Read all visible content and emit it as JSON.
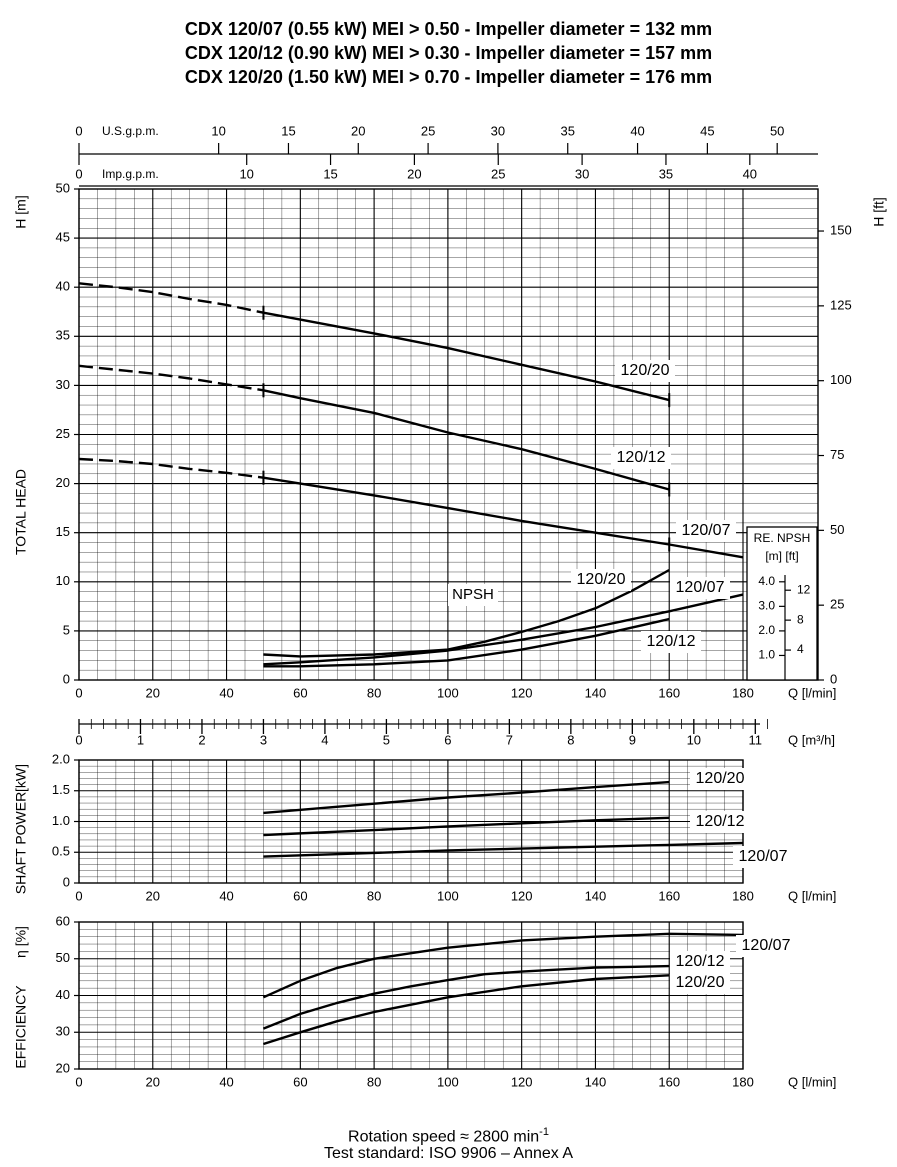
{
  "titles": [
    "CDX 120/07 (0.55 kW) MEI > 0.50 - Impeller diameter = 132 mm",
    "CDX 120/12 (0.90 kW) MEI > 0.30 - Impeller diameter = 157 mm",
    "CDX 120/20 (1.50 kW) MEI > 0.70 - Impeller diameter = 176 mm"
  ],
  "footer": {
    "rotation_speed": "Rotation speed ≈ 2800 min",
    "rotation_unit_sup": "-1",
    "test_standard": "Test standard: ISO 9906 – Annex A"
  },
  "top_axes": {
    "usgpm_label": "U.S.g.p.m.",
    "usgpm_ticks": [
      0,
      10,
      15,
      20,
      25,
      30,
      35,
      40,
      45,
      50
    ],
    "impgpm_label": "Imp.g.p.m.",
    "impgpm_ticks": [
      0,
      10,
      15,
      20,
      25,
      30,
      35,
      40
    ]
  },
  "chart_data": [
    {
      "id": "head",
      "type": "line",
      "ylabel": "TOTAL HEAD",
      "ylabel_unit": "H [m]",
      "y2label": "H [ft]",
      "xlabel": "Q [l/min]",
      "xlim": [
        0,
        180
      ],
      "ylim": [
        0,
        50
      ],
      "grid": true,
      "x_ticks": [
        0,
        20,
        40,
        60,
        80,
        100,
        120,
        140,
        160,
        180
      ],
      "y_ticks": [
        0,
        5,
        10,
        15,
        20,
        25,
        30,
        35,
        40,
        45,
        50
      ],
      "y2_ticks": [
        0,
        25,
        50,
        75,
        100,
        125,
        150
      ],
      "series": [
        {
          "name": "120/20",
          "kind": "head",
          "dashed_x": [
            0,
            10,
            20,
            30,
            40,
            50
          ],
          "dashed_y": [
            40.4,
            40.0,
            39.5,
            38.8,
            38.2,
            37.4
          ],
          "x": [
            50,
            60,
            80,
            100,
            120,
            140,
            160
          ],
          "y": [
            37.4,
            36.7,
            35.3,
            33.8,
            32.1,
            30.4,
            28.5
          ]
        },
        {
          "name": "120/12",
          "kind": "head",
          "dashed_x": [
            0,
            10,
            20,
            30,
            40,
            50
          ],
          "dashed_y": [
            32.0,
            31.6,
            31.2,
            30.7,
            30.1,
            29.5
          ],
          "x": [
            50,
            60,
            80,
            100,
            120,
            140,
            160
          ],
          "y": [
            29.5,
            28.7,
            27.2,
            25.2,
            23.5,
            21.5,
            19.4
          ]
        },
        {
          "name": "120/07",
          "kind": "head",
          "dashed_x": [
            0,
            10,
            20,
            30,
            40,
            50
          ],
          "dashed_y": [
            22.5,
            22.3,
            22.0,
            21.5,
            21.1,
            20.6
          ],
          "x": [
            50,
            60,
            80,
            100,
            120,
            140,
            160,
            180
          ],
          "y": [
            20.6,
            20.0,
            18.8,
            17.5,
            16.2,
            15.0,
            13.8,
            12.5
          ]
        },
        {
          "name": "120/20",
          "kind": "npsh",
          "x": [
            50,
            60,
            80,
            100,
            110,
            120,
            130,
            140,
            150,
            160
          ],
          "y": [
            2.6,
            2.4,
            2.6,
            3.1,
            3.9,
            4.9,
            6.0,
            7.3,
            9.1,
            11.2
          ]
        },
        {
          "name": "120/07",
          "kind": "npsh",
          "x": [
            50,
            60,
            80,
            100,
            120,
            140,
            160,
            180
          ],
          "y": [
            1.6,
            1.8,
            2.3,
            3.0,
            4.1,
            5.4,
            7.0,
            8.7
          ]
        },
        {
          "name": "120/12",
          "kind": "npsh",
          "x": [
            50,
            60,
            80,
            100,
            120,
            140,
            160
          ],
          "y": [
            1.4,
            1.4,
            1.6,
            2.0,
            3.1,
            4.5,
            6.2
          ]
        }
      ],
      "labels": {
        "npsh": "NPSH"
      },
      "npsh_inset": {
        "title": "RE. NPSH",
        "units": "[m]  [ft]",
        "m_ticks": [
          "4.0",
          "3.0",
          "2.0",
          "1.0"
        ],
        "ft_ticks": [
          "12",
          "8",
          "4"
        ]
      }
    },
    {
      "id": "m3h_axis",
      "type": "axis",
      "xlabel": "Q [m³/h]",
      "x_ticks": [
        0,
        1,
        2,
        3,
        4,
        5,
        6,
        7,
        8,
        9,
        10,
        11
      ]
    },
    {
      "id": "power",
      "type": "line",
      "ylabel": "SHAFT POWER",
      "ylabel_unit": "[kW]",
      "xlabel": "Q [l/min]",
      "xlim": [
        0,
        180
      ],
      "ylim": [
        0,
        2.0
      ],
      "grid": true,
      "x_ticks": [
        0,
        20,
        40,
        60,
        80,
        100,
        120,
        140,
        160,
        180
      ],
      "y_ticks": [
        "0",
        "0.5",
        "1.0",
        "1.5",
        "2.0"
      ],
      "series": [
        {
          "name": "120/20",
          "x": [
            50,
            80,
            100,
            120,
            140,
            160
          ],
          "y": [
            1.14,
            1.29,
            1.39,
            1.47,
            1.56,
            1.64
          ]
        },
        {
          "name": "120/12",
          "x": [
            50,
            80,
            100,
            120,
            140,
            160
          ],
          "y": [
            0.78,
            0.86,
            0.92,
            0.97,
            1.02,
            1.06
          ]
        },
        {
          "name": "120/07",
          "x": [
            50,
            80,
            100,
            120,
            140,
            160,
            180
          ],
          "y": [
            0.43,
            0.49,
            0.53,
            0.56,
            0.59,
            0.62,
            0.65
          ]
        }
      ]
    },
    {
      "id": "efficiency",
      "type": "line",
      "ylabel": "EFFICIENCY",
      "ylabel_unit": "η [%]",
      "xlabel": "Q [l/min]",
      "xlim": [
        0,
        180
      ],
      "ylim": [
        20,
        60
      ],
      "grid": true,
      "x_ticks": [
        0,
        20,
        40,
        60,
        80,
        100,
        120,
        140,
        160,
        180
      ],
      "y_ticks": [
        20,
        30,
        40,
        50,
        60
      ],
      "series": [
        {
          "name": "120/07",
          "x": [
            50,
            60,
            70,
            80,
            90,
            100,
            120,
            140,
            160,
            180
          ],
          "y": [
            39.5,
            44.0,
            47.5,
            50.0,
            51.5,
            53.0,
            55.0,
            56.0,
            56.8,
            56.5
          ]
        },
        {
          "name": "120/12",
          "x": [
            50,
            60,
            70,
            80,
            90,
            100,
            110,
            120,
            140,
            160
          ],
          "y": [
            31.0,
            35.0,
            38.0,
            40.5,
            42.5,
            44.2,
            45.8,
            46.5,
            47.6,
            48.0
          ]
        },
        {
          "name": "120/20",
          "x": [
            50,
            60,
            70,
            80,
            90,
            100,
            120,
            140,
            160
          ],
          "y": [
            26.8,
            30.0,
            33.0,
            35.5,
            37.5,
            39.5,
            42.5,
            44.5,
            45.5
          ]
        }
      ]
    }
  ]
}
